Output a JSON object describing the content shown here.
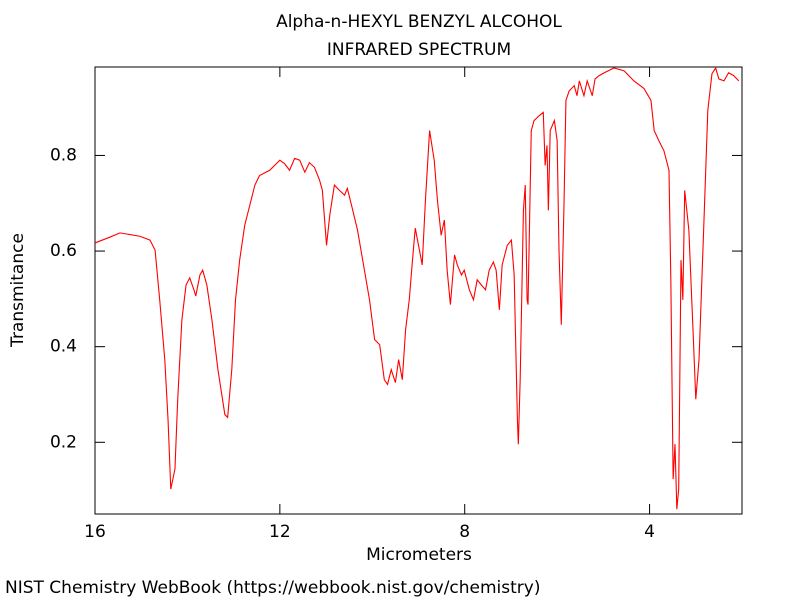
{
  "chart_data": {
    "type": "line",
    "title": "Alpha-n-HEXYL BENZYL ALCOHOL",
    "subtitle": "INFRARED SPECTRUM",
    "x_label": "Micrometers",
    "y_label": "Transmitance",
    "footer": "NIST Chemistry WebBook (https://webbook.nist.gov/chemistry)",
    "xlim": [
      16,
      2
    ],
    "ylim": [
      0.05,
      0.985
    ],
    "xticks": [
      16,
      12,
      8,
      4
    ],
    "yticks": [
      0.2,
      0.4,
      0.6,
      0.8
    ],
    "x": [
      16.0,
      15.68,
      15.46,
      15.03,
      14.81,
      14.7,
      14.6,
      14.49,
      14.42,
      14.36,
      14.27,
      14.21,
      14.12,
      14.03,
      13.95,
      13.86,
      13.82,
      13.73,
      13.67,
      13.58,
      13.47,
      13.34,
      13.19,
      13.13,
      13.04,
      12.96,
      12.87,
      12.76,
      12.65,
      12.54,
      12.44,
      12.22,
      12.0,
      11.9,
      11.79,
      11.68,
      11.57,
      11.46,
      11.36,
      11.25,
      11.14,
      11.08,
      10.99,
      10.92,
      10.82,
      10.71,
      10.6,
      10.54,
      10.45,
      10.32,
      10.17,
      10.06,
      9.95,
      9.84,
      9.74,
      9.67,
      9.59,
      9.5,
      9.43,
      9.35,
      9.28,
      9.2,
      9.13,
      9.07,
      8.98,
      8.92,
      8.85,
      8.76,
      8.66,
      8.59,
      8.51,
      8.44,
      8.38,
      8.31,
      8.22,
      8.16,
      8.07,
      8.01,
      7.9,
      7.81,
      7.73,
      7.64,
      7.55,
      7.47,
      7.38,
      7.32,
      7.25,
      7.19,
      7.08,
      6.99,
      6.93,
      6.86,
      6.84,
      6.8,
      6.73,
      6.69,
      6.65,
      6.63,
      6.56,
      6.5,
      6.39,
      6.3,
      6.26,
      6.22,
      6.19,
      6.15,
      6.06,
      6.0,
      5.96,
      5.91,
      5.85,
      5.81,
      5.74,
      5.63,
      5.57,
      5.52,
      5.42,
      5.35,
      5.24,
      5.18,
      5.09,
      4.98,
      4.77,
      4.55,
      4.34,
      4.12,
      3.97,
      3.9,
      3.8,
      3.69,
      3.58,
      3.54,
      3.49,
      3.45,
      3.41,
      3.37,
      3.32,
      3.28,
      3.24,
      3.15,
      3.06,
      3.0,
      2.93,
      2.83,
      2.74,
      2.65,
      2.57,
      2.5,
      2.39,
      2.29,
      2.18,
      2.07
    ],
    "series": [
      {
        "color": "#ff0000",
        "values": [
          0.617,
          0.629,
          0.638,
          0.631,
          0.623,
          0.602,
          0.498,
          0.373,
          0.248,
          0.102,
          0.144,
          0.29,
          0.456,
          0.529,
          0.544,
          0.519,
          0.506,
          0.55,
          0.56,
          0.529,
          0.456,
          0.352,
          0.258,
          0.252,
          0.352,
          0.498,
          0.581,
          0.654,
          0.696,
          0.738,
          0.758,
          0.769,
          0.79,
          0.783,
          0.769,
          0.794,
          0.79,
          0.765,
          0.785,
          0.775,
          0.748,
          0.727,
          0.612,
          0.675,
          0.738,
          0.727,
          0.717,
          0.731,
          0.696,
          0.644,
          0.56,
          0.498,
          0.415,
          0.404,
          0.331,
          0.321,
          0.352,
          0.325,
          0.373,
          0.331,
          0.435,
          0.498,
          0.581,
          0.648,
          0.602,
          0.571,
          0.706,
          0.852,
          0.79,
          0.706,
          0.633,
          0.665,
          0.56,
          0.488,
          0.592,
          0.571,
          0.55,
          0.56,
          0.519,
          0.498,
          0.54,
          0.529,
          0.519,
          0.56,
          0.577,
          0.56,
          0.477,
          0.571,
          0.612,
          0.623,
          0.55,
          0.248,
          0.196,
          0.331,
          0.685,
          0.738,
          0.498,
          0.488,
          0.852,
          0.873,
          0.883,
          0.89,
          0.779,
          0.821,
          0.685,
          0.852,
          0.873,
          0.831,
          0.602,
          0.446,
          0.706,
          0.915,
          0.935,
          0.946,
          0.925,
          0.956,
          0.925,
          0.956,
          0.925,
          0.96,
          0.967,
          0.973,
          0.983,
          0.977,
          0.956,
          0.94,
          0.915,
          0.852,
          0.831,
          0.81,
          0.769,
          0.54,
          0.123,
          0.196,
          0.06,
          0.102,
          0.581,
          0.498,
          0.727,
          0.644,
          0.435,
          0.29,
          0.373,
          0.644,
          0.894,
          0.971,
          0.983,
          0.96,
          0.956,
          0.973,
          0.967,
          0.956
        ]
      }
    ]
  }
}
